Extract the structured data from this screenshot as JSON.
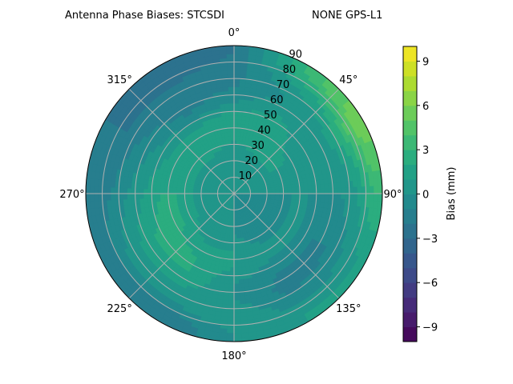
{
  "chart_data": {
    "type": "polar-contour",
    "title_left": "Antenna Phase Biases: STCSDI",
    "title_right": "NONE GPS-L1",
    "angle_ticks": [
      {
        "angle": 0,
        "label": "0°"
      },
      {
        "angle": 45,
        "label": "45°"
      },
      {
        "angle": 90,
        "label": "90°"
      },
      {
        "angle": 135,
        "label": "135°"
      },
      {
        "angle": 180,
        "label": "180°"
      },
      {
        "angle": 225,
        "label": "225°"
      },
      {
        "angle": 270,
        "label": "270°"
      },
      {
        "angle": 315,
        "label": "315°"
      }
    ],
    "radial_ticks": [
      "10",
      "20",
      "30",
      "40",
      "50",
      "60",
      "70",
      "80",
      "90"
    ],
    "radial_range": [
      0,
      90
    ],
    "grid": true,
    "colormap": "viridis",
    "color_range": [
      -10,
      10
    ],
    "level_step": 1,
    "colorbar": {
      "label": "Bias (mm)",
      "ticks": [
        "−9",
        "−6",
        "−3",
        "0",
        "3",
        "6",
        "9"
      ],
      "tick_values": [
        -9,
        -6,
        -3,
        0,
        3,
        6,
        9
      ],
      "placement": "right"
    },
    "azimuths": [
      0,
      30,
      60,
      90,
      120,
      150,
      180,
      210,
      240,
      270,
      300,
      330
    ],
    "zeniths": [
      5,
      15,
      25,
      35,
      45,
      55,
      65,
      75,
      85
    ],
    "bias_grid": [
      [
        0,
        0,
        0,
        1.5,
        2,
        0,
        -1,
        -1.5,
        -2
      ],
      [
        0,
        0,
        1,
        2,
        2,
        1,
        0,
        1,
        3
      ],
      [
        0,
        0,
        1,
        1,
        0,
        0,
        1,
        3,
        6
      ],
      [
        0,
        0,
        0,
        0,
        0,
        0,
        0,
        1,
        3
      ],
      [
        -1,
        -1,
        -1,
        0,
        0,
        -1,
        -1,
        0,
        1
      ],
      [
        -1,
        -1,
        -1,
        0,
        0,
        -1,
        -1.5,
        -0.5,
        1
      ],
      [
        0,
        0,
        0,
        1,
        1,
        0,
        0,
        1,
        0
      ],
      [
        0,
        0,
        0,
        1,
        2,
        2,
        1,
        0,
        -2
      ],
      [
        0,
        0,
        1,
        2,
        2.5,
        2,
        1,
        0,
        -2
      ],
      [
        0,
        0,
        1,
        2,
        2,
        1,
        0,
        -1,
        -1.5
      ],
      [
        0,
        0,
        1,
        2,
        1,
        0,
        -1,
        -2,
        -2
      ],
      [
        0,
        0,
        1,
        2,
        1,
        -1,
        -2,
        -2,
        -3
      ]
    ]
  }
}
